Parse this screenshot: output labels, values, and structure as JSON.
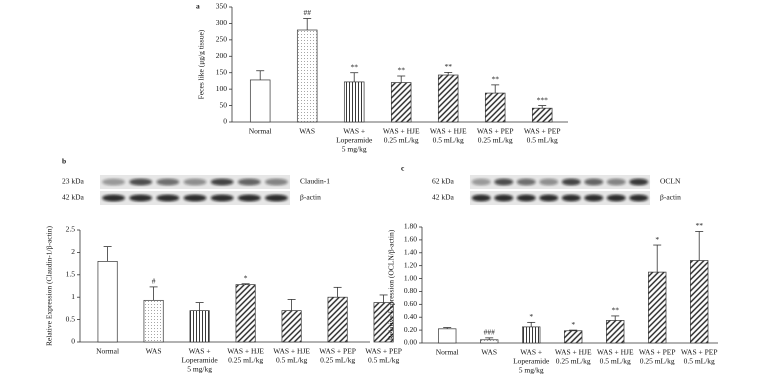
{
  "chart_data": [
    {
      "type": "bar",
      "panel": "a",
      "ylabel": "Feces like (μg/g tissue)",
      "categories": [
        [
          "Normal"
        ],
        [
          "WAS"
        ],
        [
          "WAS +",
          "Loperamide",
          "5 mg/kg"
        ],
        [
          "WAS + HJE",
          "0.25 mL/kg"
        ],
        [
          "WAS + HJE",
          "0.5 mL/kg"
        ],
        [
          "WAS + PEP",
          "0.25 mL/kg"
        ],
        [
          "WAS + PEP",
          "0.5 mL/kg"
        ]
      ],
      "values": [
        128,
        280,
        122,
        120,
        143,
        88,
        42
      ],
      "errors": [
        28,
        35,
        28,
        20,
        8,
        25,
        8
      ],
      "value_labels": [
        null,
        "##",
        "**",
        "**",
        "**",
        "**",
        "***"
      ],
      "patterns": [
        "none",
        "dots",
        "vertical",
        "diagonal",
        "diagonal",
        "diagonal",
        "diagonal"
      ],
      "ylim": [
        0,
        350
      ],
      "yticks": [
        0,
        50,
        100,
        150,
        200,
        250,
        300,
        350
      ]
    },
    {
      "type": "bar",
      "panel": "b",
      "ylabel": "Relative Expression (Claudin-1/β-actin)",
      "blot": [
        {
          "size": "23 kDa",
          "protein": "Claudin-1"
        },
        {
          "size": "42 kDa",
          "protein": "β-actin"
        }
      ],
      "categories": [
        [
          "Normal"
        ],
        [
          "WAS"
        ],
        [
          "WAS +",
          "Loperamide",
          "5 mg/kg"
        ],
        [
          "WAS + HJE",
          "0.25 mL/kg"
        ],
        [
          "WAS + HJE",
          "0.5 mL/kg"
        ],
        [
          "WAS + PEP",
          "0.25 mL/kg"
        ],
        [
          "WAS + PEP",
          "0.5 mL/kg"
        ]
      ],
      "values": [
        1.8,
        0.93,
        0.7,
        1.28,
        0.7,
        1.0,
        0.88
      ],
      "errors": [
        0.33,
        0.3,
        0.18,
        0.02,
        0.25,
        0.22,
        0.17
      ],
      "value_labels": [
        null,
        "#",
        null,
        "*",
        null,
        null,
        null
      ],
      "patterns": [
        "none",
        "dots",
        "vertical",
        "diagonal",
        "diagonal",
        "diagonal",
        "diagonal"
      ],
      "ylim": [
        0,
        2.5
      ],
      "yticks": [
        0,
        0.5,
        1,
        1.5,
        2,
        2.5
      ]
    },
    {
      "type": "bar",
      "panel": "c",
      "ylabel": "Relative Expression (OCLN/β-actin)",
      "blot": [
        {
          "size": "62 kDa",
          "protein": "OCLN"
        },
        {
          "size": "42 kDa",
          "protein": "β-actin"
        }
      ],
      "categories": [
        [
          "Normal"
        ],
        [
          "WAS"
        ],
        [
          "WAS +",
          "Loperamide",
          "5 mg/kg"
        ],
        [
          "WAS + HJE",
          "0.25 mL/kg"
        ],
        [
          "WAS + HJE",
          "0.5 mL/kg"
        ],
        [
          "WAS + PEP",
          "0.25 mL/kg"
        ],
        [
          "WAS + PEP",
          "0.5 mL/kg"
        ]
      ],
      "values": [
        0.22,
        0.05,
        0.25,
        0.19,
        0.35,
        1.1,
        1.28
      ],
      "errors": [
        0.02,
        0.03,
        0.07,
        0.01,
        0.07,
        0.42,
        0.45
      ],
      "value_labels": [
        null,
        "###",
        "*",
        "*",
        "**",
        "*",
        "**"
      ],
      "patterns": [
        "none",
        "dots",
        "vertical",
        "diagonal",
        "diagonal",
        "diagonal",
        "diagonal"
      ],
      "ylim": [
        0,
        1.8
      ],
      "yticks": [
        {
          "value": 0,
          "label": "0.00"
        },
        {
          "value": 0.2,
          "label": "0.20"
        },
        {
          "value": 0.4,
          "label": "0.40"
        },
        {
          "value": 0.6,
          "label": "0.60"
        },
        {
          "value": 0.8,
          "label": "0.80"
        },
        {
          "value": 1,
          "label": "1.00"
        },
        {
          "value": 1.2,
          "label": "1.20"
        },
        {
          "value": 1.4,
          "label": "1.40"
        },
        {
          "value": 1.6,
          "label": "1.60"
        },
        {
          "value": 1.8,
          "label": "1.80"
        }
      ]
    }
  ]
}
